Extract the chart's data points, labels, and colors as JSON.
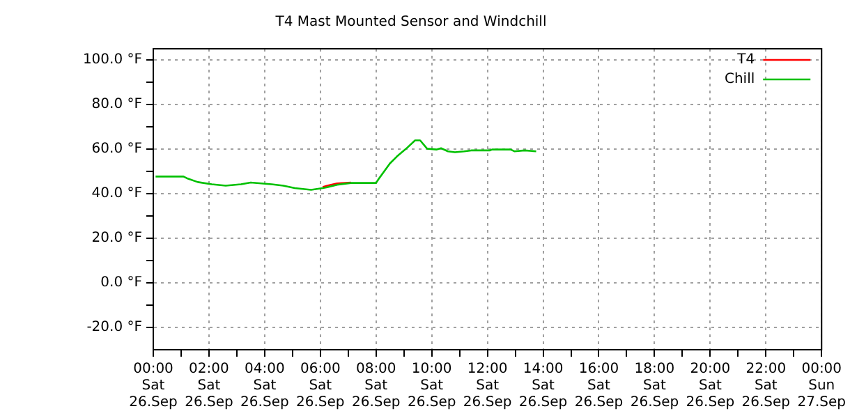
{
  "chart_data": {
    "type": "line",
    "title": "T4 Mast Mounted Sensor and Windchill",
    "x": [
      "--09-26T00:05",
      "--09-26T01:05",
      "--09-26T01:15",
      "--09-26T01:36",
      "--09-26T02:06",
      "--09-26T02:36",
      "--09-26T03:09",
      "--09-26T03:30",
      "--09-26T04:15",
      "--09-26T04:40",
      "--09-26T05:05",
      "--09-26T05:40",
      "--09-26T06:05",
      "--09-26T06:15",
      "--09-26T06:36",
      "--09-26T07:06",
      "--09-26T08:00",
      "--09-26T08:06",
      "--09-26T08:30",
      "--09-26T08:45",
      "--09-26T09:05",
      "--09-26T09:24",
      "--09-26T09:35",
      "--09-26T09:50",
      "--09-26T10:10",
      "--09-26T10:20",
      "--09-26T10:35",
      "--09-26T10:50",
      "--09-26T11:10",
      "--09-26T11:25",
      "--09-26T12:05",
      "--09-26T12:10",
      "--09-26T12:50",
      "--09-26T12:58",
      "--09-26T13:20",
      "--09-26T13:45"
    ],
    "series": [
      {
        "name": "T4",
        "color": "#ff0000",
        "values": [
          null,
          null,
          null,
          null,
          null,
          null,
          null,
          null,
          null,
          null,
          null,
          null,
          43.0,
          43.6,
          44.6,
          45.0,
          null,
          null,
          null,
          null,
          null,
          null,
          null,
          null,
          null,
          null,
          null,
          null,
          null,
          null,
          null,
          null,
          null,
          null,
          null,
          null
        ]
      },
      {
        "name": "Chill",
        "color": "#00c000",
        "values": [
          47.7,
          47.7,
          46.7,
          45.2,
          44.2,
          43.6,
          44.2,
          45,
          44.2,
          43.6,
          42.5,
          41.7,
          42.5,
          42.9,
          44,
          44.8,
          44.8,
          46.7,
          53.6,
          56.7,
          60.2,
          63.9,
          63.9,
          60.2,
          59.8,
          60.4,
          59,
          58.6,
          59,
          59.4,
          59.4,
          59.8,
          59.8,
          59,
          59.4,
          59
        ]
      }
    ],
    "xlim": [
      "--09-26T00:00",
      "--09-27T00:00"
    ],
    "xticks": [
      {
        "value": "--09-26T00:00",
        "label": "00:00\nSat\n26.Sep"
      },
      {
        "value": "--09-26T01:00",
        "label": null
      },
      {
        "value": "--09-26T02:00",
        "label": "02:00\nSat\n26.Sep"
      },
      {
        "value": "--09-26T03:00",
        "label": null
      },
      {
        "value": "--09-26T04:00",
        "label": "04:00\nSat\n26.Sep"
      },
      {
        "value": "--09-26T05:00",
        "label": null
      },
      {
        "value": "--09-26T06:00",
        "label": "06:00\nSat\n26.Sep"
      },
      {
        "value": "--09-26T07:00",
        "label": null
      },
      {
        "value": "--09-26T08:00",
        "label": "08:00\nSat\n26.Sep"
      },
      {
        "value": "--09-26T09:00",
        "label": null
      },
      {
        "value": "--09-26T10:00",
        "label": "10:00\nSat\n26.Sep"
      },
      {
        "value": "--09-26T11:00",
        "label": null
      },
      {
        "value": "--09-26T12:00",
        "label": "12:00\nSat\n26.Sep"
      },
      {
        "value": "--09-26T13:00",
        "label": null
      },
      {
        "value": "--09-26T14:00",
        "label": "14:00\nSat\n26.Sep"
      },
      {
        "value": "--09-26T15:00",
        "label": null
      },
      {
        "value": "--09-26T16:00",
        "label": "16:00\nSat\n26.Sep"
      },
      {
        "value": "--09-26T17:00",
        "label": null
      },
      {
        "value": "--09-26T18:00",
        "label": "18:00\nSat\n26.Sep"
      },
      {
        "value": "--09-26T19:00",
        "label": null
      },
      {
        "value": "--09-26T20:00",
        "label": "20:00\nSat\n26.Sep"
      },
      {
        "value": "--09-26T21:00",
        "label": null
      },
      {
        "value": "--09-26T22:00",
        "label": "22:00\nSat\n26.Sep"
      },
      {
        "value": "--09-26T23:00",
        "label": null
      },
      {
        "value": "--09-27T00:00",
        "label": "00:00\nSun\n27.Sep"
      }
    ],
    "ylim": [
      -30,
      105
    ],
    "yticks": [
      {
        "value": -20,
        "label": "-20.0 °F"
      },
      {
        "value": -10,
        "label": null
      },
      {
        "value": 0,
        "label": "0.0 °F"
      },
      {
        "value": 10,
        "label": null
      },
      {
        "value": 20,
        "label": "20.0 °F"
      },
      {
        "value": 30,
        "label": null
      },
      {
        "value": 40,
        "label": "40.0 °F"
      },
      {
        "value": 50,
        "label": null
      },
      {
        "value": 60,
        "label": "60.0 °F"
      },
      {
        "value": 70,
        "label": null
      },
      {
        "value": 80,
        "label": "80.0 °F"
      },
      {
        "value": 90,
        "label": null
      },
      {
        "value": 100,
        "label": "100.0 °F"
      }
    ],
    "grid": true,
    "legend": "top right",
    "marker": "none",
    "line_style": "solid"
  }
}
